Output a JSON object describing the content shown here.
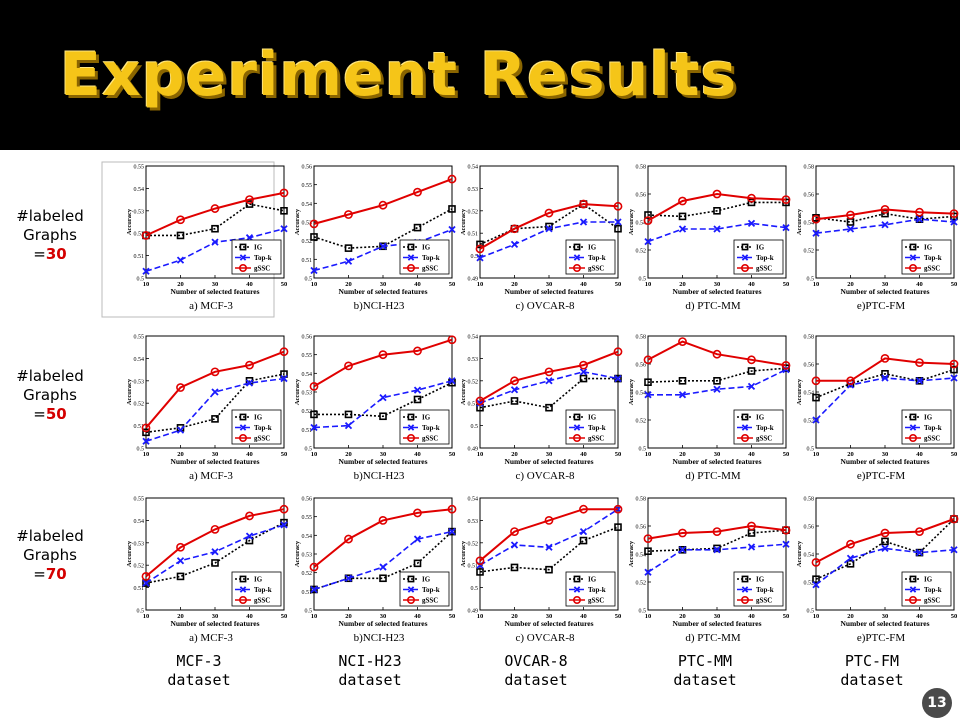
{
  "slide": {
    "title": "Experiment Results",
    "page_number": "13",
    "row_labels": [
      {
        "line1": "#labeled",
        "line2": "Graphs",
        "prefix": "=",
        "value": "30"
      },
      {
        "line1": "#labeled",
        "line2": "Graphs",
        "prefix": "=",
        "value": "50"
      },
      {
        "line1": "#labeled",
        "line2": "Graphs",
        "prefix": "=",
        "value": "70"
      }
    ],
    "dataset_labels": [
      {
        "line1": "MCF-3",
        "line2": "dataset"
      },
      {
        "line1": "NCI-H23",
        "line2": "dataset"
      },
      {
        "line1": "OVCAR-8",
        "line2": "dataset"
      },
      {
        "line1": "PTC-MM",
        "line2": "dataset"
      },
      {
        "line1": "PTC-FM",
        "line2": "dataset"
      }
    ]
  },
  "colors": {
    "IG": "#000000",
    "Top-k": "#1a1aff",
    "gSSC": "#e00000",
    "title": "#f5c518"
  },
  "chart_data": [
    {
      "type": "line",
      "title": "a) MCF-3",
      "xlabel": "Number of selected features",
      "ylabel": "Accuracy",
      "x": [
        10,
        20,
        30,
        40,
        50
      ],
      "ylim": [
        0.5,
        0.55
      ],
      "yticks": [
        "0.5",
        "0.51",
        "0.52",
        "0.53",
        "0.54",
        "0.55"
      ],
      "legend": "bottom-right",
      "series": [
        {
          "name": "IG",
          "values": [
            0.519,
            0.519,
            0.522,
            0.533,
            0.53
          ]
        },
        {
          "name": "Top-k",
          "values": [
            0.503,
            0.508,
            0.516,
            0.518,
            0.522
          ]
        },
        {
          "name": "gSSC",
          "values": [
            0.519,
            0.526,
            0.531,
            0.535,
            0.538
          ]
        }
      ]
    },
    {
      "type": "line",
      "title": "b)NCI-H23",
      "xlabel": "Number of selected features",
      "ylabel": "Accuracy",
      "x": [
        10,
        20,
        30,
        40,
        50
      ],
      "ylim": [
        0.5,
        0.56
      ],
      "yticks": [
        "0.5",
        "0.51",
        "0.52",
        "0.53",
        "0.54",
        "0.55",
        "0.56"
      ],
      "legend": "bottom-right",
      "series": [
        {
          "name": "IG",
          "values": [
            0.522,
            0.516,
            0.517,
            0.527,
            0.537
          ]
        },
        {
          "name": "Top-k",
          "values": [
            0.504,
            0.509,
            0.517,
            0.519,
            0.526
          ]
        },
        {
          "name": "gSSC",
          "values": [
            0.529,
            0.534,
            0.539,
            0.546,
            0.553
          ]
        }
      ]
    },
    {
      "type": "line",
      "title": "c) OVCAR-8",
      "xlabel": "Number of selected features",
      "ylabel": "Accuracy",
      "x": [
        10,
        20,
        30,
        40,
        50
      ],
      "ylim": [
        0.49,
        0.54
      ],
      "yticks": [
        "0.49",
        "0.5",
        "0.51",
        "0.52",
        "0.53",
        "0.54"
      ],
      "legend": "bottom-right",
      "series": [
        {
          "name": "IG",
          "values": [
            0.505,
            0.512,
            0.513,
            0.523,
            0.512
          ]
        },
        {
          "name": "Top-k",
          "values": [
            0.499,
            0.505,
            0.512,
            0.515,
            0.515
          ]
        },
        {
          "name": "gSSC",
          "values": [
            0.503,
            0.512,
            0.519,
            0.523,
            0.522
          ]
        }
      ]
    },
    {
      "type": "line",
      "title": "d) PTC-MM",
      "xlabel": "Number of selected features",
      "ylabel": "Accuracy",
      "x": [
        10,
        20,
        30,
        40,
        50
      ],
      "ylim": [
        0.5,
        0.58
      ],
      "yticks": [
        "0.5",
        "0.52",
        "0.54",
        "0.56",
        "0.58"
      ],
      "legend": "bottom-right",
      "series": [
        {
          "name": "IG",
          "values": [
            0.545,
            0.544,
            0.548,
            0.554,
            0.554
          ]
        },
        {
          "name": "Top-k",
          "values": [
            0.526,
            0.535,
            0.535,
            0.539,
            0.536
          ]
        },
        {
          "name": "gSSC",
          "values": [
            0.541,
            0.555,
            0.56,
            0.557,
            0.556
          ]
        }
      ]
    },
    {
      "type": "line",
      "title": "e)PTC-FM",
      "xlabel": "Number of selected features",
      "ylabel": "Accuracy",
      "x": [
        10,
        20,
        30,
        40,
        50
      ],
      "ylim": [
        0.5,
        0.58
      ],
      "yticks": [
        "0.5",
        "0.52",
        "0.54",
        "0.56",
        "0.58"
      ],
      "legend": "bottom-right",
      "series": [
        {
          "name": "IG",
          "values": [
            0.543,
            0.54,
            0.546,
            0.542,
            0.544
          ]
        },
        {
          "name": "Top-k",
          "values": [
            0.532,
            0.535,
            0.538,
            0.542,
            0.54
          ]
        },
        {
          "name": "gSSC",
          "values": [
            0.542,
            0.545,
            0.549,
            0.547,
            0.546
          ]
        }
      ]
    },
    {
      "type": "line",
      "title": "a) MCF-3",
      "xlabel": "Number of selected features",
      "ylabel": "Accuracy",
      "x": [
        10,
        20,
        30,
        40,
        50
      ],
      "ylim": [
        0.5,
        0.55
      ],
      "yticks": [
        "0.5",
        "0.51",
        "0.52",
        "0.53",
        "0.54",
        "0.55"
      ],
      "legend": "bottom-right",
      "series": [
        {
          "name": "IG",
          "values": [
            0.507,
            0.509,
            0.513,
            0.53,
            0.533
          ]
        },
        {
          "name": "Top-k",
          "values": [
            0.503,
            0.508,
            0.525,
            0.529,
            0.531
          ]
        },
        {
          "name": "gSSC",
          "values": [
            0.509,
            0.527,
            0.534,
            0.537,
            0.543
          ]
        }
      ]
    },
    {
      "type": "line",
      "title": "b)NCI-H23",
      "xlabel": "Number of selected features",
      "ylabel": "Accuracy",
      "x": [
        10,
        20,
        30,
        40,
        50
      ],
      "ylim": [
        0.5,
        0.56
      ],
      "yticks": [
        "0.5",
        "0.51",
        "0.52",
        "0.53",
        "0.54",
        "0.55",
        "0.56"
      ],
      "legend": "bottom-right",
      "series": [
        {
          "name": "IG",
          "values": [
            0.518,
            0.518,
            0.517,
            0.526,
            0.535
          ]
        },
        {
          "name": "Top-k",
          "values": [
            0.511,
            0.512,
            0.527,
            0.531,
            0.536
          ]
        },
        {
          "name": "gSSC",
          "values": [
            0.533,
            0.544,
            0.55,
            0.552,
            0.558
          ]
        }
      ]
    },
    {
      "type": "line",
      "title": "c) OVCAR-8",
      "xlabel": "Number of selected features",
      "ylabel": "Accuracy",
      "x": [
        10,
        20,
        30,
        40,
        50
      ],
      "ylim": [
        0.49,
        0.54
      ],
      "yticks": [
        "0.49",
        "0.5",
        "0.51",
        "0.52",
        "0.53",
        "0.54"
      ],
      "legend": "bottom-right",
      "series": [
        {
          "name": "IG",
          "values": [
            0.508,
            0.511,
            0.508,
            0.521,
            0.521
          ]
        },
        {
          "name": "Top-k",
          "values": [
            0.51,
            0.516,
            0.52,
            0.524,
            0.521
          ]
        },
        {
          "name": "gSSC",
          "values": [
            0.511,
            0.52,
            0.524,
            0.527,
            0.533
          ]
        }
      ]
    },
    {
      "type": "line",
      "title": "d) PTC-MM",
      "xlabel": "Number of selected features",
      "ylabel": "Accuracy",
      "x": [
        10,
        20,
        30,
        40,
        50
      ],
      "ylim": [
        0.5,
        0.58
      ],
      "yticks": [
        "0.5",
        "0.52",
        "0.54",
        "0.56",
        "0.58"
      ],
      "legend": "bottom-right",
      "series": [
        {
          "name": "IG",
          "values": [
            0.547,
            0.548,
            0.548,
            0.555,
            0.557
          ]
        },
        {
          "name": "Top-k",
          "values": [
            0.538,
            0.538,
            0.542,
            0.544,
            0.556
          ]
        },
        {
          "name": "gSSC",
          "values": [
            0.563,
            0.576,
            0.567,
            0.563,
            0.559
          ]
        }
      ]
    },
    {
      "type": "line",
      "title": "e)PTC-FM",
      "xlabel": "Number of selected features",
      "ylabel": "Accuracy",
      "x": [
        10,
        20,
        30,
        40,
        50
      ],
      "ylim": [
        0.5,
        0.58
      ],
      "yticks": [
        "0.5",
        "0.52",
        "0.54",
        "0.56",
        "0.58"
      ],
      "legend": "bottom-right",
      "series": [
        {
          "name": "IG",
          "values": [
            0.536,
            0.546,
            0.553,
            0.548,
            0.556
          ]
        },
        {
          "name": "Top-k",
          "values": [
            0.52,
            0.545,
            0.55,
            0.548,
            0.55
          ]
        },
        {
          "name": "gSSC",
          "values": [
            0.548,
            0.548,
            0.564,
            0.561,
            0.56
          ]
        }
      ]
    },
    {
      "type": "line",
      "title": "a) MCF-3",
      "xlabel": "Number of selected features",
      "ylabel": "Accuracy",
      "x": [
        10,
        20,
        30,
        40,
        50
      ],
      "ylim": [
        0.5,
        0.55
      ],
      "yticks": [
        "0.5",
        "0.51",
        "0.52",
        "0.53",
        "0.54",
        "0.55"
      ],
      "legend": "bottom-right",
      "series": [
        {
          "name": "IG",
          "values": [
            0.512,
            0.515,
            0.521,
            0.531,
            0.539
          ]
        },
        {
          "name": "Top-k",
          "values": [
            0.512,
            0.522,
            0.526,
            0.533,
            0.538
          ]
        },
        {
          "name": "gSSC",
          "values": [
            0.515,
            0.528,
            0.536,
            0.542,
            0.545
          ]
        }
      ]
    },
    {
      "type": "line",
      "title": "b)NCI-H23",
      "xlabel": "Number of selected features",
      "ylabel": "Accuracy",
      "x": [
        10,
        20,
        30,
        40,
        50
      ],
      "ylim": [
        0.5,
        0.56
      ],
      "yticks": [
        "0.5",
        "0.51",
        "0.52",
        "0.53",
        "0.54",
        "0.55",
        "0.56"
      ],
      "legend": "bottom-right",
      "series": [
        {
          "name": "IG",
          "values": [
            0.511,
            0.517,
            0.517,
            0.525,
            0.542
          ]
        },
        {
          "name": "Top-k",
          "values": [
            0.511,
            0.517,
            0.523,
            0.538,
            0.542
          ]
        },
        {
          "name": "gSSC",
          "values": [
            0.523,
            0.538,
            0.548,
            0.552,
            0.554
          ]
        }
      ]
    },
    {
      "type": "line",
      "title": "c) OVCAR-8",
      "xlabel": "Number of selected features",
      "ylabel": "Accuracy",
      "x": [
        10,
        20,
        30,
        40,
        50
      ],
      "ylim": [
        0.49,
        0.54
      ],
      "yticks": [
        "0.49",
        "0.5",
        "0.51",
        "0.52",
        "0.53",
        "0.54"
      ],
      "legend": "bottom-right",
      "series": [
        {
          "name": "IG",
          "values": [
            0.507,
            0.509,
            0.508,
            0.521,
            0.527
          ]
        },
        {
          "name": "Top-k",
          "values": [
            0.51,
            0.519,
            0.518,
            0.525,
            0.535
          ]
        },
        {
          "name": "gSSC",
          "values": [
            0.512,
            0.525,
            0.53,
            0.535,
            0.535
          ]
        }
      ]
    },
    {
      "type": "line",
      "title": "d) PTC-MM",
      "xlabel": "Number of selected features",
      "ylabel": "Accuracy",
      "x": [
        10,
        20,
        30,
        40,
        50
      ],
      "ylim": [
        0.5,
        0.58
      ],
      "yticks": [
        "0.5",
        "0.52",
        "0.54",
        "0.56",
        "0.58"
      ],
      "legend": "bottom-right",
      "series": [
        {
          "name": "IG",
          "values": [
            0.542,
            0.543,
            0.544,
            0.555,
            0.557
          ]
        },
        {
          "name": "Top-k",
          "values": [
            0.527,
            0.543,
            0.543,
            0.545,
            0.547
          ]
        },
        {
          "name": "gSSC",
          "values": [
            0.551,
            0.555,
            0.556,
            0.56,
            0.557
          ]
        }
      ]
    },
    {
      "type": "line",
      "title": "e)PTC-FM",
      "xlabel": "Number of selected features",
      "ylabel": "Accuracy",
      "x": [
        10,
        20,
        30,
        40,
        50
      ],
      "ylim": [
        0.5,
        0.58
      ],
      "yticks": [
        "0.5",
        "0.52",
        "0.54",
        "0.56",
        "0.58"
      ],
      "legend": "bottom-right",
      "series": [
        {
          "name": "IG",
          "values": [
            0.522,
            0.533,
            0.549,
            0.541,
            0.565
          ]
        },
        {
          "name": "Top-k",
          "values": [
            0.518,
            0.537,
            0.544,
            0.541,
            0.543
          ]
        },
        {
          "name": "gSSC",
          "values": [
            0.534,
            0.547,
            0.555,
            0.556,
            0.565
          ]
        }
      ]
    }
  ]
}
